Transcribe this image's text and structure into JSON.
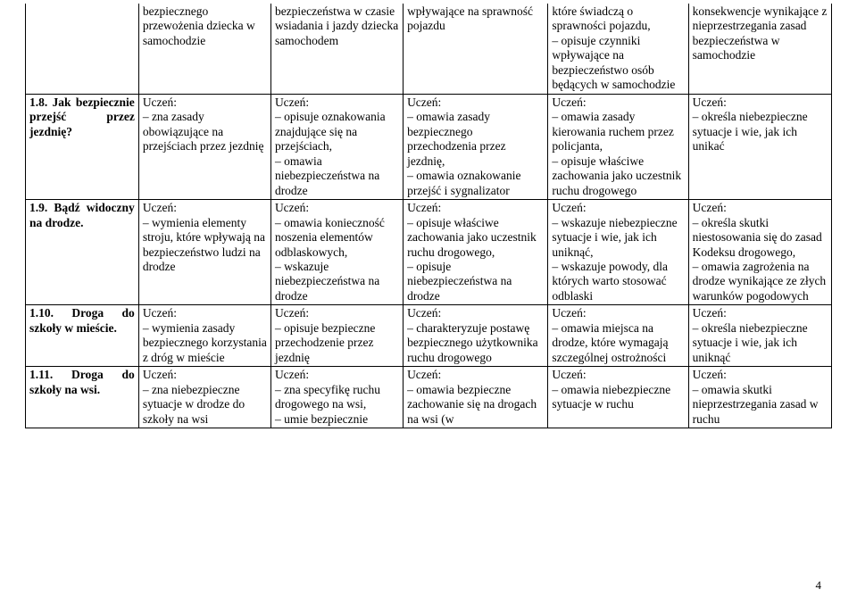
{
  "page_number": "4",
  "rows": [
    {
      "c1": "",
      "c2": "bezpiecznego przewożenia dziecka w samochodzie",
      "c3": "bezpieczeństwa w czasie wsiadania i jazdy dziecka samochodem",
      "c4": "wpływające na sprawność pojazdu",
      "c5": "które świadczą o sprawności pojazdu,\n– opisuje czynniki wpływające na bezpieczeństwo osób będących w samochodzie",
      "c6": "konsekwencje wynikające z nieprzestrzegania zasad bezpieczeństwa w samochodzie"
    },
    {
      "c1": "1.8. Jak bezpiecznie przejść przez jezdnię?",
      "c2": "Uczeń:\n– zna zasady obowiązujące na przejściach przez jezdnię",
      "c3": "Uczeń:\n– opisuje oznakowania znajdujące się na przejściach,\n– omawia niebezpieczeństwa na drodze",
      "c4": "Uczeń:\n– omawia zasady bezpiecznego przechodzenia przez jezdnię,\n– omawia oznakowanie przejść i sygnalizator",
      "c5": "Uczeń:\n– omawia zasady kierowania ruchem przez policjanta,\n– opisuje właściwe zachowania jako uczestnik ruchu drogowego",
      "c6": "Uczeń:\n– określa niebezpieczne sytuacje i wie, jak ich unikać"
    },
    {
      "c1": "1.9. Bądź widoczny na drodze.",
      "c2": "Uczeń:\n– wymienia elementy stroju, które wpływają na bezpieczeństwo ludzi na drodze",
      "c3": "Uczeń:\n– omawia konieczność noszenia elementów odblaskowych,\n– wskazuje niebezpieczeństwa na drodze",
      "c4": "Uczeń:\n– opisuje właściwe zachowania jako uczestnik ruchu drogowego,\n– opisuje niebezpieczeństwa na drodze",
      "c5": "Uczeń:\n– wskazuje niebezpieczne sytuacje i wie, jak ich uniknąć,\n– wskazuje powody, dla których warto stosować odblaski",
      "c6": "Uczeń:\n– określa skutki niestosowania się do zasad Kodeksu drogowego,\n– omawia zagrożenia na drodze wynikające ze złych warunków pogodowych"
    },
    {
      "c1": "1.10. Droga do szkoły w mieście.",
      "c2": "Uczeń:\n– wymienia zasady bezpiecznego korzystania z dróg w mieście",
      "c3": "Uczeń:\n– opisuje bezpieczne przechodzenie przez jezdnię",
      "c4": "Uczeń:\n– charakteryzuje postawę bezpiecznego użytkownika ruchu drogowego",
      "c5": "Uczeń:\n– omawia miejsca na drodze, które wymagają szczególnej ostrożności",
      "c6": "Uczeń:\n– określa niebezpieczne sytuacje i wie, jak ich uniknąć"
    },
    {
      "c1": "1.11. Droga do szkoły na wsi.",
      "c2": "Uczeń:\n– zna niebezpieczne sytuacje w drodze do szkoły na wsi",
      "c3": "Uczeń:\n– zna specyfikę ruchu drogowego na wsi,\n– umie bezpiecznie",
      "c4": "Uczeń:\n– omawia bezpieczne zachowanie się na drogach na wsi (w",
      "c5": "Uczeń:\n– omawia niebezpieczne sytuacje w ruchu",
      "c6": "Uczeń:\n– omawia skutki nieprzestrzegania zasad w ruchu"
    }
  ]
}
